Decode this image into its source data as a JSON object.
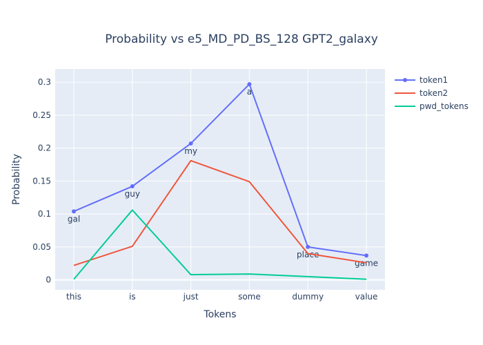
{
  "chart_data": {
    "type": "line",
    "title": "Probability vs e5_MD_PD_BS_128 GPT2_galaxy",
    "xlabel": "Tokens",
    "ylabel": "Probability",
    "categories": [
      "this",
      "is",
      "just",
      "some",
      "dummy",
      "value"
    ],
    "ylim": [
      -0.015,
      0.32
    ],
    "yticks": [
      0,
      0.05,
      0.1,
      0.15,
      0.2,
      0.25,
      0.3
    ],
    "ytick_labels": [
      "0",
      "0.05",
      "0.1",
      "0.15",
      "0.2",
      "0.25",
      "0.3"
    ],
    "grid": true,
    "legend_position": "top-right",
    "series": [
      {
        "name": "token1",
        "color": "#636efa",
        "mode": "lines+markers+text",
        "values": [
          0.104,
          0.142,
          0.207,
          0.297,
          0.05,
          0.037
        ],
        "labels": [
          "gal",
          "guy",
          "my",
          "a",
          "place",
          "game"
        ]
      },
      {
        "name": "token2",
        "color": "#ef553b",
        "mode": "lines",
        "values": [
          0.022,
          0.051,
          0.181,
          0.149,
          0.04,
          0.026
        ]
      },
      {
        "name": "pwd_tokens",
        "color": "#00cc96",
        "mode": "lines",
        "values": [
          0.001,
          0.106,
          0.008,
          0.009,
          0.005,
          0.001
        ]
      }
    ]
  }
}
